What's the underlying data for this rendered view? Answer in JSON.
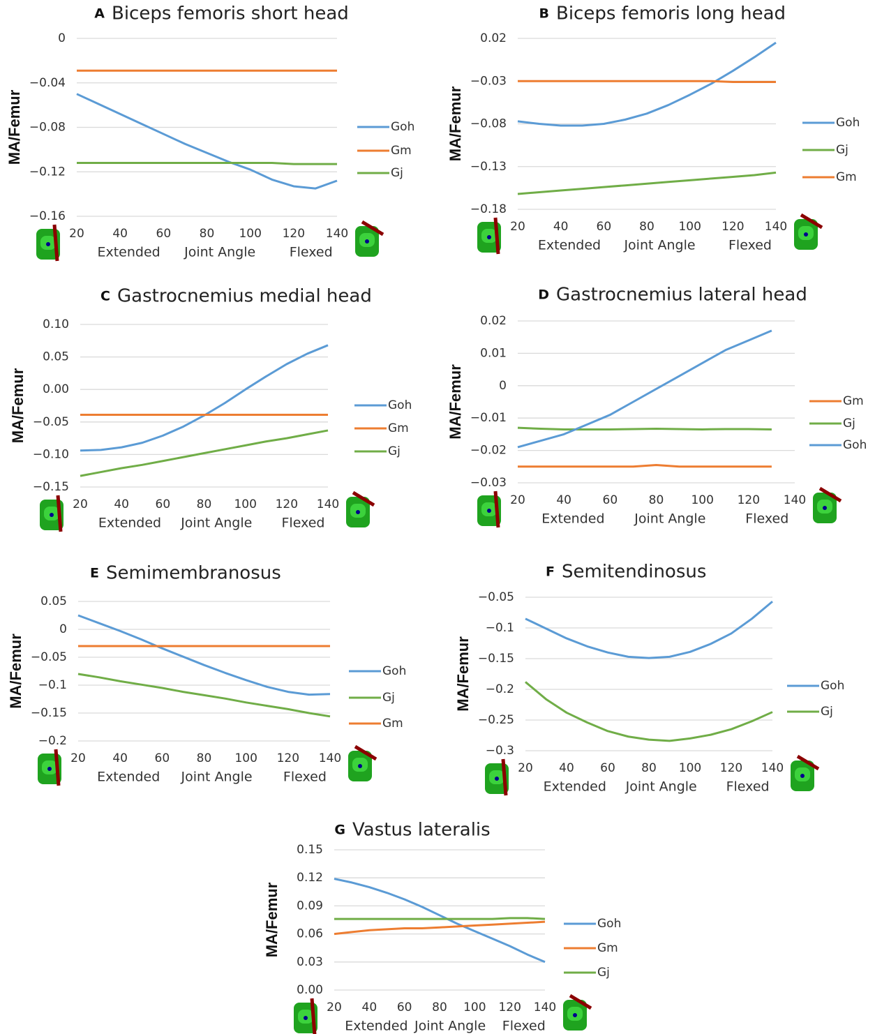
{
  "chart_data": [
    {
      "type": "line",
      "panel": "A",
      "title": "Biceps femoris short head",
      "ylabel": "MA/Femur",
      "xlabel": "Joint Angle",
      "annotations": [
        "Extended",
        "Flexed"
      ],
      "x": [
        20,
        30,
        40,
        50,
        60,
        70,
        80,
        90,
        100,
        110,
        120,
        130,
        140
      ],
      "xlim": [
        20,
        140
      ],
      "xticks": [
        20,
        40,
        60,
        80,
        100,
        120,
        140
      ],
      "ylim": [
        -0.16,
        0
      ],
      "yticks": [
        0,
        {
          "value": -0.04,
          "label": "−0.04"
        },
        {
          "value": -0.08,
          "label": "−0.08"
        },
        {
          "value": -0.12,
          "label": "−0.12"
        },
        {
          "value": -0.16,
          "label": "−0.16"
        }
      ],
      "grid": true,
      "series": [
        {
          "name": "Goh",
          "color": "#5b9bd5",
          "values": [
            -0.05,
            -0.059,
            -0.068,
            -0.077,
            -0.086,
            -0.095,
            -0.103,
            -0.111,
            -0.118,
            -0.127,
            -0.133,
            -0.135,
            -0.128
          ]
        },
        {
          "name": "Gm",
          "color": "#ed7d31",
          "values": [
            -0.029,
            -0.029,
            -0.029,
            -0.029,
            -0.029,
            -0.029,
            -0.029,
            -0.029,
            -0.029,
            -0.029,
            -0.029,
            -0.029,
            -0.029
          ]
        },
        {
          "name": "Gj",
          "color": "#70ad47",
          "values": [
            -0.112,
            -0.112,
            -0.112,
            -0.112,
            -0.112,
            -0.112,
            -0.112,
            -0.112,
            -0.112,
            -0.112,
            -0.113,
            -0.113,
            -0.113
          ]
        }
      ]
    },
    {
      "type": "line",
      "panel": "B",
      "title": "Biceps femoris long head",
      "ylabel": "MA/Femur",
      "xlabel": "Joint Angle",
      "annotations": [
        "Extended",
        "Flexed"
      ],
      "x": [
        20,
        30,
        40,
        50,
        60,
        70,
        80,
        90,
        100,
        110,
        120,
        130,
        140
      ],
      "xlim": [
        20,
        140
      ],
      "xticks": [
        20,
        40,
        60,
        80,
        100,
        120,
        140
      ],
      "ylim": [
        -0.18,
        0.02
      ],
      "yticks": [
        0.02,
        {
          "value": -0.03,
          "label": "−0.03"
        },
        {
          "value": -0.08,
          "label": "−0.08"
        },
        {
          "value": -0.13,
          "label": "−0.13"
        },
        {
          "value": -0.18,
          "label": "−0.18"
        }
      ],
      "grid": true,
      "series": [
        {
          "name": "Goh",
          "color": "#5b9bd5",
          "values": [
            -0.077,
            -0.08,
            -0.082,
            -0.082,
            -0.08,
            -0.075,
            -0.068,
            -0.058,
            -0.046,
            -0.033,
            -0.018,
            -0.002,
            0.015
          ]
        },
        {
          "name": "Gj",
          "color": "#70ad47",
          "values": [
            -0.162,
            -0.16,
            -0.158,
            -0.156,
            -0.154,
            -0.152,
            -0.15,
            -0.148,
            -0.146,
            -0.144,
            -0.142,
            -0.14,
            -0.137
          ]
        },
        {
          "name": "Gm",
          "color": "#ed7d31",
          "values": [
            -0.03,
            -0.03,
            -0.03,
            -0.03,
            -0.03,
            -0.03,
            -0.03,
            -0.03,
            -0.03,
            -0.03,
            -0.031,
            -0.031,
            -0.031
          ]
        }
      ]
    },
    {
      "type": "line",
      "panel": "C",
      "title": "Gastrocnemius medial head",
      "ylabel": "MA/Femur",
      "xlabel": "Joint Angle",
      "annotations": [
        "Extended",
        "Flexed"
      ],
      "x": [
        20,
        30,
        40,
        50,
        60,
        70,
        80,
        90,
        100,
        110,
        120,
        130,
        140
      ],
      "xlim": [
        20,
        140
      ],
      "xticks": [
        20,
        40,
        60,
        80,
        100,
        120,
        140
      ],
      "ylim": [
        -0.15,
        0.1
      ],
      "yticks": [
        {
          "value": 0.1,
          "label": "0.10"
        },
        0.05,
        {
          "value": 0,
          "label": "0.00"
        },
        {
          "value": -0.05,
          "label": "−0.05"
        },
        {
          "value": -0.1,
          "label": "−0.10"
        },
        {
          "value": -0.15,
          "label": "−0.15"
        }
      ],
      "grid": true,
      "series": [
        {
          "name": "Goh",
          "color": "#5b9bd5",
          "values": [
            -0.094,
            -0.093,
            -0.089,
            -0.082,
            -0.071,
            -0.057,
            -0.04,
            -0.021,
            0.0,
            0.02,
            0.039,
            0.055,
            0.068
          ]
        },
        {
          "name": "Gm",
          "color": "#ed7d31",
          "values": [
            -0.039,
            -0.039,
            -0.039,
            -0.039,
            -0.039,
            -0.039,
            -0.039,
            -0.039,
            -0.039,
            -0.039,
            -0.039,
            -0.039,
            -0.039
          ]
        },
        {
          "name": "Gj",
          "color": "#70ad47",
          "values": [
            -0.133,
            -0.127,
            -0.121,
            -0.116,
            -0.11,
            -0.104,
            -0.098,
            -0.092,
            -0.086,
            -0.08,
            -0.075,
            -0.069,
            -0.063
          ]
        }
      ]
    },
    {
      "type": "line",
      "panel": "D",
      "title": "Gastrocnemius lateral head",
      "ylabel": "MA/Femur",
      "xlabel": "Joint Angle",
      "annotations": [
        "Extended",
        "Flexed"
      ],
      "x": [
        20,
        30,
        40,
        50,
        60,
        70,
        80,
        90,
        100,
        110,
        120,
        130
      ],
      "xlim": [
        20,
        140
      ],
      "xticks": [
        20,
        40,
        60,
        80,
        100,
        120,
        140
      ],
      "ylim": [
        -0.03,
        0.02
      ],
      "yticks": [
        0.02,
        0.01,
        0,
        {
          "value": -0.01,
          "label": "−0.01"
        },
        {
          "value": -0.02,
          "label": "−0.02"
        },
        {
          "value": -0.03,
          "label": "−0.03"
        }
      ],
      "grid": true,
      "series": [
        {
          "name": "Gm",
          "color": "#ed7d31",
          "values": [
            -0.025,
            -0.025,
            -0.025,
            -0.025,
            -0.025,
            -0.025,
            -0.0245,
            -0.025,
            -0.025,
            -0.025,
            -0.025,
            -0.025
          ]
        },
        {
          "name": "Gj",
          "color": "#70ad47",
          "values": [
            -0.013,
            -0.0133,
            -0.0135,
            -0.0135,
            -0.0135,
            -0.0134,
            -0.0133,
            -0.0134,
            -0.0135,
            -0.0134,
            -0.0134,
            -0.0135
          ]
        },
        {
          "name": "Goh",
          "color": "#5b9bd5",
          "values": [
            -0.019,
            -0.017,
            -0.015,
            -0.012,
            -0.009,
            -0.005,
            -0.001,
            0.003,
            0.007,
            0.011,
            0.014,
            0.017
          ]
        }
      ]
    },
    {
      "type": "line",
      "panel": "E",
      "title": "Semimembranosus",
      "ylabel": "MA/Femur",
      "xlabel": "Joint Angle",
      "annotations": [
        "Extended",
        "Flexed"
      ],
      "x": [
        20,
        30,
        40,
        50,
        60,
        70,
        80,
        90,
        100,
        110,
        120,
        130,
        140
      ],
      "xlim": [
        20,
        140
      ],
      "xticks": [
        20,
        40,
        60,
        80,
        100,
        120,
        140
      ],
      "ylim": [
        -0.2,
        0.05
      ],
      "yticks": [
        0.05,
        0,
        {
          "value": -0.05,
          "label": "−0.05"
        },
        {
          "value": -0.1,
          "label": "−0.1"
        },
        {
          "value": -0.15,
          "label": "−0.15"
        },
        {
          "value": -0.2,
          "label": "−0.2"
        }
      ],
      "grid": true,
      "series": [
        {
          "name": "Goh",
          "color": "#5b9bd5",
          "values": [
            0.025,
            0.011,
            -0.003,
            -0.018,
            -0.034,
            -0.049,
            -0.064,
            -0.078,
            -0.091,
            -0.103,
            -0.112,
            -0.117,
            -0.116
          ]
        },
        {
          "name": "Gj",
          "color": "#70ad47",
          "values": [
            -0.08,
            -0.086,
            -0.093,
            -0.099,
            -0.105,
            -0.112,
            -0.118,
            -0.124,
            -0.131,
            -0.137,
            -0.143,
            -0.15,
            -0.156
          ]
        },
        {
          "name": "Gm",
          "color": "#ed7d31",
          "values": [
            -0.03,
            -0.03,
            -0.03,
            -0.03,
            -0.03,
            -0.03,
            -0.03,
            -0.03,
            -0.03,
            -0.03,
            -0.03,
            -0.03,
            -0.03
          ]
        }
      ]
    },
    {
      "type": "line",
      "panel": "F",
      "title": "Semitendinosus",
      "ylabel": "MA/Femur",
      "xlabel": "Joint Angle",
      "annotations": [
        "Extended",
        "Flexed"
      ],
      "x": [
        20,
        30,
        40,
        50,
        60,
        70,
        80,
        90,
        100,
        110,
        120,
        130,
        140
      ],
      "xlim": [
        20,
        140
      ],
      "xticks": [
        20,
        40,
        60,
        80,
        100,
        120,
        140
      ],
      "ylim": [
        -0.3,
        -0.05
      ],
      "yticks": [
        {
          "value": -0.05,
          "label": "−0.05"
        },
        {
          "value": -0.1,
          "label": "−0.1"
        },
        {
          "value": -0.15,
          "label": "−0.15"
        },
        {
          "value": -0.2,
          "label": "−0.2"
        },
        {
          "value": -0.25,
          "label": "−0.25"
        },
        {
          "value": -0.3,
          "label": "−0.3"
        }
      ],
      "grid": true,
      "series": [
        {
          "name": "Goh",
          "color": "#5b9bd5",
          "values": [
            -0.085,
            -0.101,
            -0.117,
            -0.13,
            -0.14,
            -0.147,
            -0.149,
            -0.147,
            -0.139,
            -0.126,
            -0.109,
            -0.085,
            -0.057
          ]
        },
        {
          "name": "Gj",
          "color": "#70ad47",
          "values": [
            -0.188,
            -0.216,
            -0.238,
            -0.254,
            -0.268,
            -0.277,
            -0.282,
            -0.284,
            -0.28,
            -0.274,
            -0.265,
            -0.252,
            -0.237
          ]
        }
      ]
    },
    {
      "type": "line",
      "panel": "G",
      "title": "Vastus lateralis",
      "ylabel": "MA/Femur",
      "xlabel": "Joint Angle",
      "annotations": [
        "Extended",
        "Flexed"
      ],
      "x": [
        20,
        30,
        40,
        50,
        60,
        70,
        80,
        90,
        100,
        110,
        120,
        130,
        140
      ],
      "xlim": [
        20,
        140
      ],
      "xticks": [
        20,
        40,
        60,
        80,
        100,
        120,
        140
      ],
      "ylim": [
        0,
        0.15
      ],
      "yticks": [
        0.15,
        0.12,
        0.09,
        0.06,
        0.03,
        {
          "value": 0,
          "label": "0.00"
        }
      ],
      "grid": true,
      "series": [
        {
          "name": "Goh",
          "color": "#5b9bd5",
          "values": [
            0.119,
            0.115,
            0.11,
            0.104,
            0.097,
            0.089,
            0.08,
            0.071,
            0.063,
            0.055,
            0.047,
            0.038,
            0.03
          ]
        },
        {
          "name": "Gm",
          "color": "#ed7d31",
          "values": [
            0.06,
            0.062,
            0.064,
            0.065,
            0.066,
            0.066,
            0.067,
            0.068,
            0.069,
            0.07,
            0.071,
            0.072,
            0.073
          ]
        },
        {
          "name": "Gj",
          "color": "#70ad47",
          "values": [
            0.076,
            0.076,
            0.076,
            0.076,
            0.076,
            0.076,
            0.076,
            0.076,
            0.076,
            0.076,
            0.077,
            0.077,
            0.076
          ]
        }
      ]
    }
  ]
}
